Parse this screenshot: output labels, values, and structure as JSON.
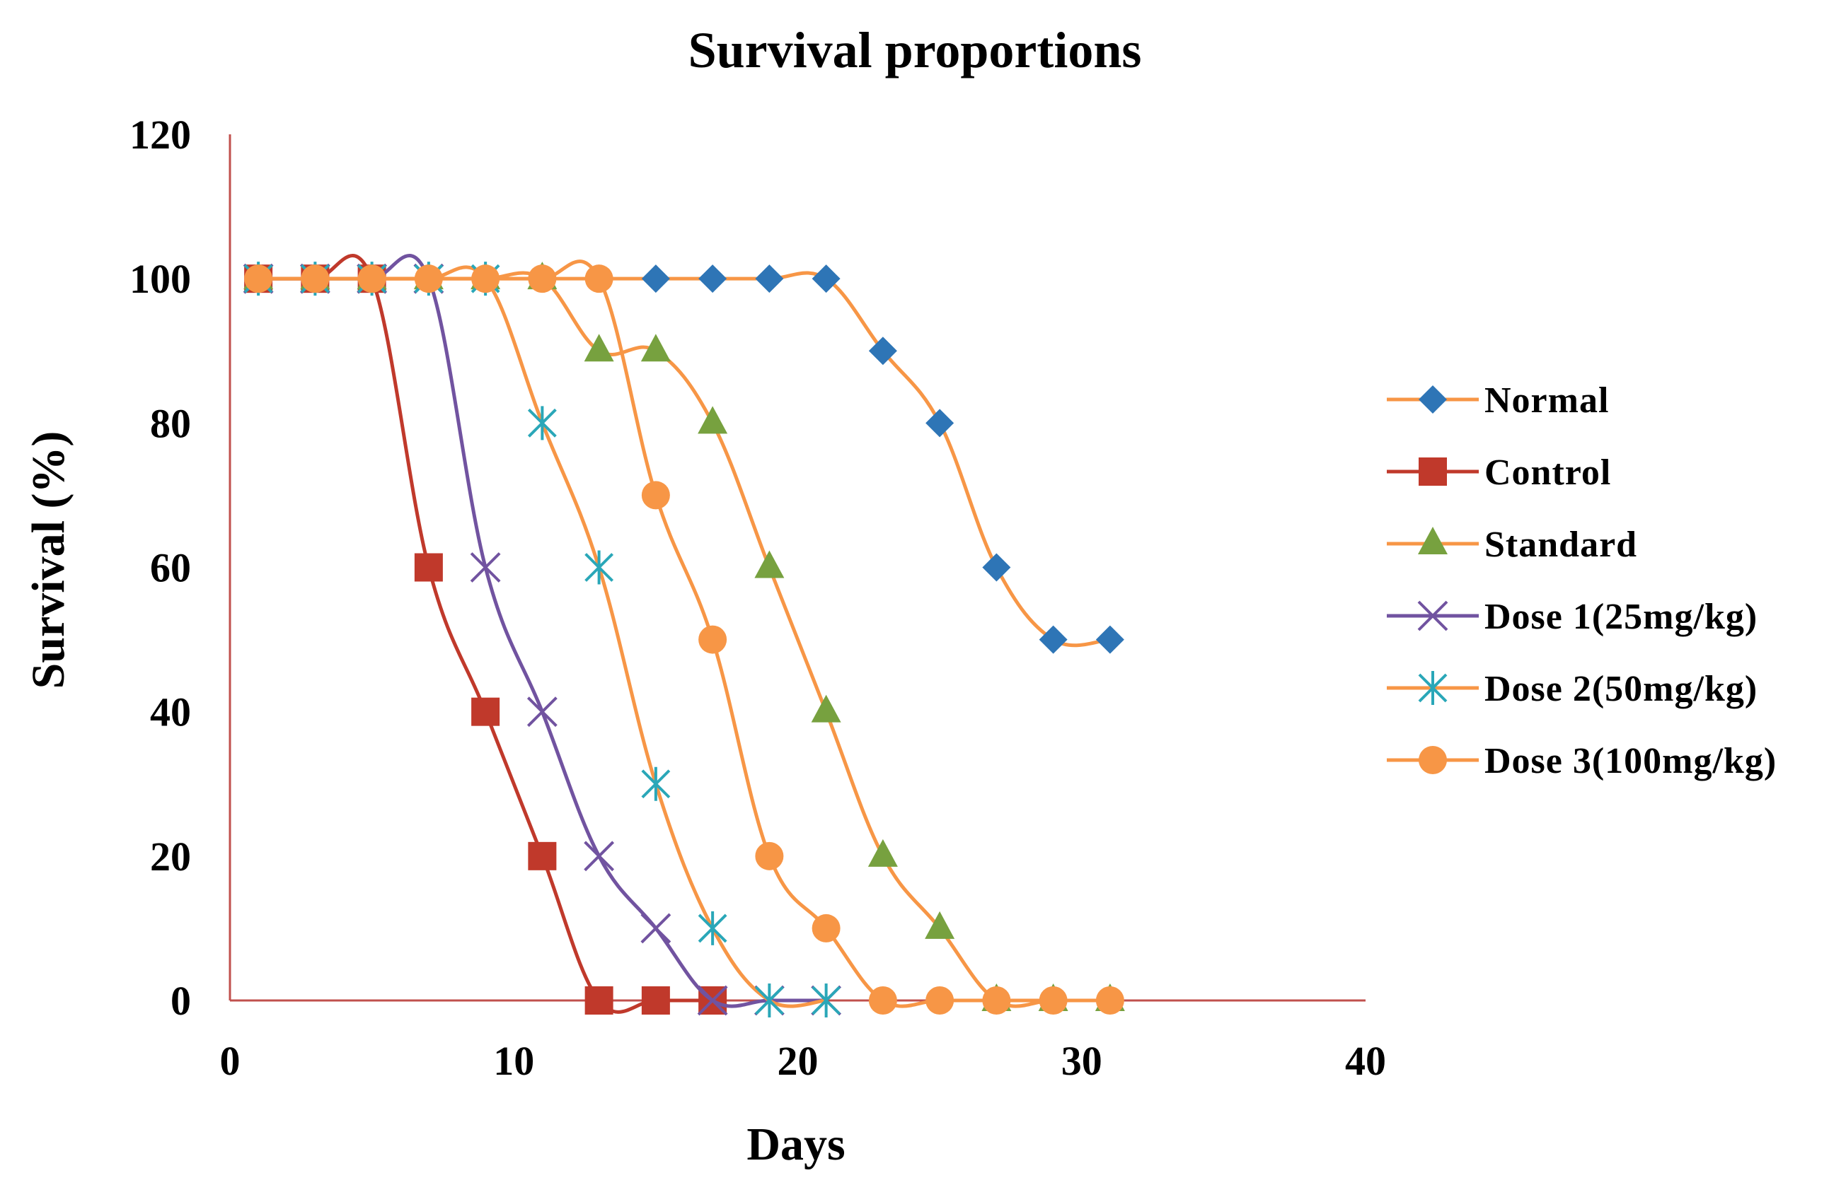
{
  "chart_data": {
    "type": "line",
    "title": "Survival proportions",
    "xlabel": "Days",
    "ylabel": "Survival (%)",
    "xlim": [
      0,
      40
    ],
    "ylim": [
      0,
      120
    ],
    "xticks": [
      0,
      10,
      20,
      30,
      40
    ],
    "yticks": [
      0,
      20,
      40,
      60,
      80,
      100,
      120
    ],
    "grid": false,
    "legend_position": "right",
    "axis_color": "#c0504d",
    "series": [
      {
        "name": "Normal",
        "marker": "diamond",
        "line_color": "#f79646",
        "marker_color": "#2e75b6",
        "x": [
          1,
          3,
          5,
          7,
          9,
          11,
          13,
          15,
          17,
          19,
          21,
          23,
          25,
          27,
          29,
          31
        ],
        "values": [
          100,
          100,
          100,
          100,
          100,
          100,
          100,
          100,
          100,
          100,
          100,
          90,
          80,
          60,
          50,
          50
        ]
      },
      {
        "name": "Control",
        "marker": "square",
        "line_color": "#c0392b",
        "marker_color": "#c0392b",
        "x": [
          1,
          3,
          5,
          7,
          9,
          11,
          13,
          15,
          17
        ],
        "values": [
          100,
          100,
          100,
          60,
          40,
          20,
          0,
          0,
          0
        ]
      },
      {
        "name": "Standard",
        "marker": "triangle",
        "line_color": "#f79646",
        "marker_color": "#77a13f",
        "x": [
          1,
          3,
          5,
          7,
          9,
          11,
          13,
          15,
          17,
          19,
          21,
          23,
          25,
          27,
          29,
          31
        ],
        "values": [
          100,
          100,
          100,
          100,
          100,
          100,
          90,
          90,
          80,
          60,
          40,
          20,
          10,
          0,
          0,
          0
        ]
      },
      {
        "name": "Dose 1(25mg/kg)",
        "marker": "x",
        "line_color": "#7153a0",
        "marker_color": "#7153a0",
        "x": [
          1,
          3,
          5,
          7,
          9,
          11,
          13,
          15,
          17,
          19,
          21
        ],
        "values": [
          100,
          100,
          100,
          100,
          60,
          40,
          20,
          10,
          0,
          0,
          0
        ]
      },
      {
        "name": "Dose 2(50mg/kg)",
        "marker": "asterisk",
        "line_color": "#f79646",
        "marker_color": "#2aa7b8",
        "x": [
          1,
          3,
          5,
          7,
          9,
          11,
          13,
          15,
          17,
          19,
          21
        ],
        "values": [
          100,
          100,
          100,
          100,
          100,
          80,
          60,
          30,
          10,
          0,
          0
        ]
      },
      {
        "name": "Dose 3(100mg/kg)",
        "marker": "circle",
        "line_color": "#f79646",
        "marker_color": "#f79646",
        "x": [
          1,
          3,
          5,
          7,
          9,
          11,
          13,
          15,
          17,
          19,
          21,
          23,
          25,
          27,
          29,
          31
        ],
        "values": [
          100,
          100,
          100,
          100,
          100,
          100,
          100,
          70,
          50,
          20,
          10,
          0,
          0,
          0,
          0,
          0
        ]
      }
    ]
  }
}
